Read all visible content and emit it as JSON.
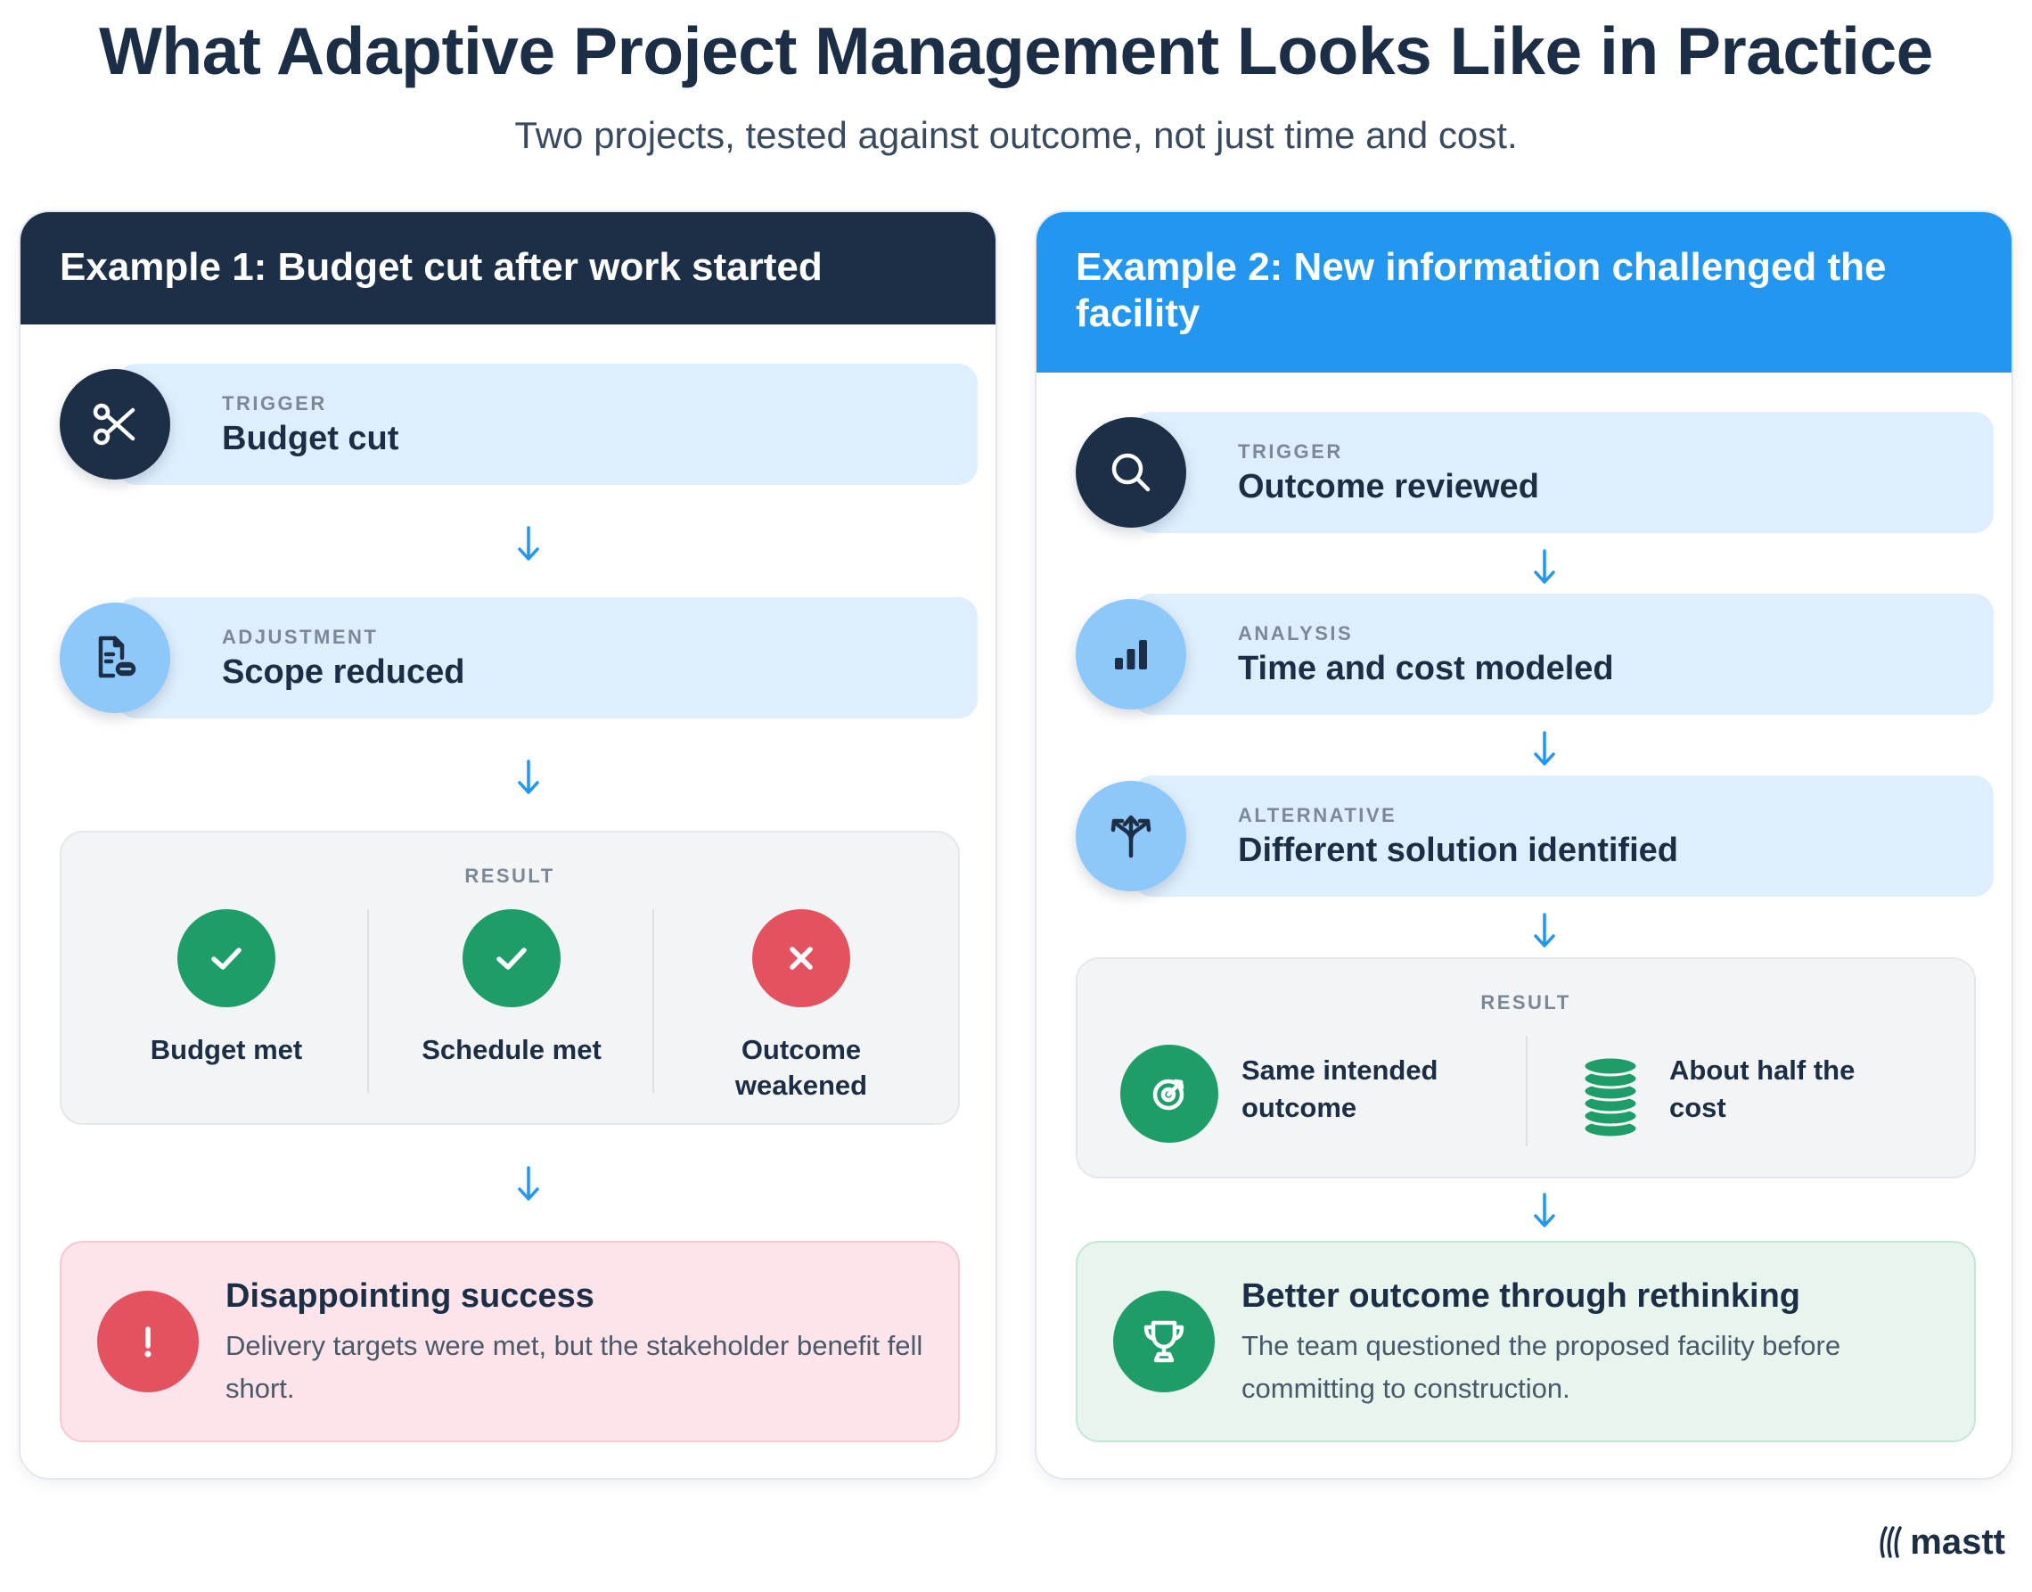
{
  "header": {
    "title": "What Adaptive Project Management Looks Like in Practice",
    "subtitle": "Two projects, tested against outcome, not just time and cost."
  },
  "example1": {
    "heading": "Example 1: Budget cut after work started",
    "steps": [
      {
        "label": "TRIGGER",
        "value": "Budget cut",
        "icon": "scissors-icon"
      },
      {
        "label": "ADJUSTMENT",
        "value": "Scope reduced",
        "icon": "document-minus-icon"
      }
    ],
    "result": {
      "label": "RESULT",
      "items": [
        {
          "text": "Budget met",
          "status": "check"
        },
        {
          "text": "Schedule met",
          "status": "check"
        },
        {
          "text": "Outcome weakened",
          "status": "cross"
        }
      ]
    },
    "final": {
      "title": "Disappointing success",
      "description": "Delivery targets were met, but the stakeholder benefit fell short.",
      "icon": "exclamation-icon"
    }
  },
  "example2": {
    "heading": "Example 2: New information challenged the facility",
    "steps": [
      {
        "label": "TRIGGER",
        "value": "Outcome reviewed",
        "icon": "magnifier-icon"
      },
      {
        "label": "ANALYSIS",
        "value": "Time and cost modeled",
        "icon": "bar-chart-icon"
      },
      {
        "label": "ALTERNATIVE",
        "value": "Different solution identified",
        "icon": "split-arrows-icon"
      }
    ],
    "result": {
      "label": "RESULT",
      "items": [
        {
          "text": "Same intended outcome",
          "icon": "target-icon"
        },
        {
          "text": "About half the cost",
          "icon": "coin-stack-icon"
        }
      ]
    },
    "final": {
      "title": "Better outcome through rethinking",
      "description": "The team questioned the proposed facility before committing to construction.",
      "icon": "trophy-icon"
    }
  },
  "brand": {
    "name": "mastt"
  },
  "colors": {
    "navy": "#1d2f46",
    "blue": "#2396f0",
    "green": "#1f9d68",
    "red": "#e2535f"
  }
}
